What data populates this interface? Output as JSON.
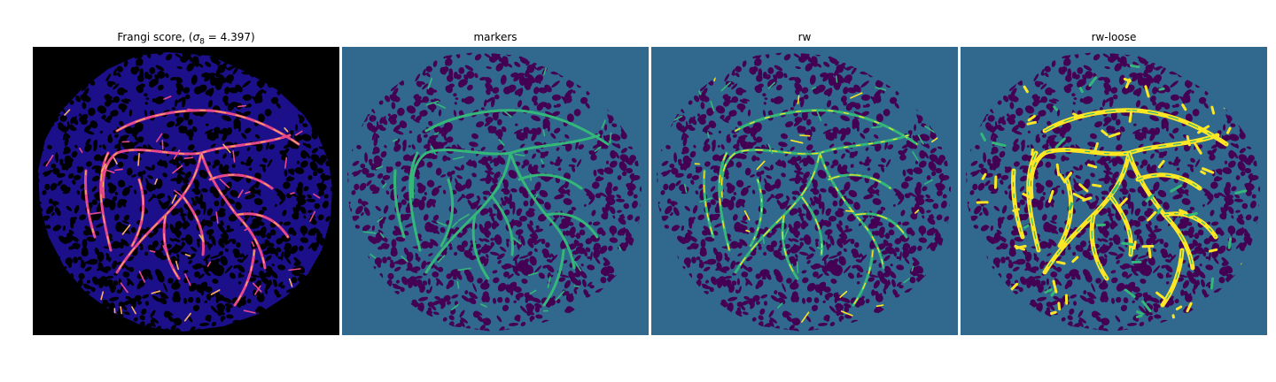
{
  "panels": [
    {
      "title_prefix": "Frangi score, (",
      "title_sigma": "σ",
      "title_sub": "8",
      "title_eq": " = 4.397)",
      "colormap": "magma",
      "colors": {
        "background": "#000000",
        "disk": "#1b0f8a",
        "blob": "#000000",
        "vessel": "#e8488a",
        "vessel_peak": "#fcb060"
      }
    },
    {
      "title": "markers",
      "colormap": "viridis",
      "colors": {
        "background": "#31688e",
        "disk": "#31688e",
        "blob": "#440154",
        "vessel": "#35b779",
        "vessel_peak": "#35b779"
      }
    },
    {
      "title": "rw",
      "colormap": "viridis",
      "colors": {
        "background": "#31688e",
        "disk": "#31688e",
        "blob": "#440154",
        "vessel": "#35b779",
        "vessel_peak": "#fde725"
      }
    },
    {
      "title": "rw-loose",
      "colormap": "viridis",
      "colors": {
        "background": "#31688e",
        "disk": "#31688e",
        "blob": "#440154",
        "vessel": "#fde725",
        "vessel_peak": "#35b779"
      }
    }
  ]
}
